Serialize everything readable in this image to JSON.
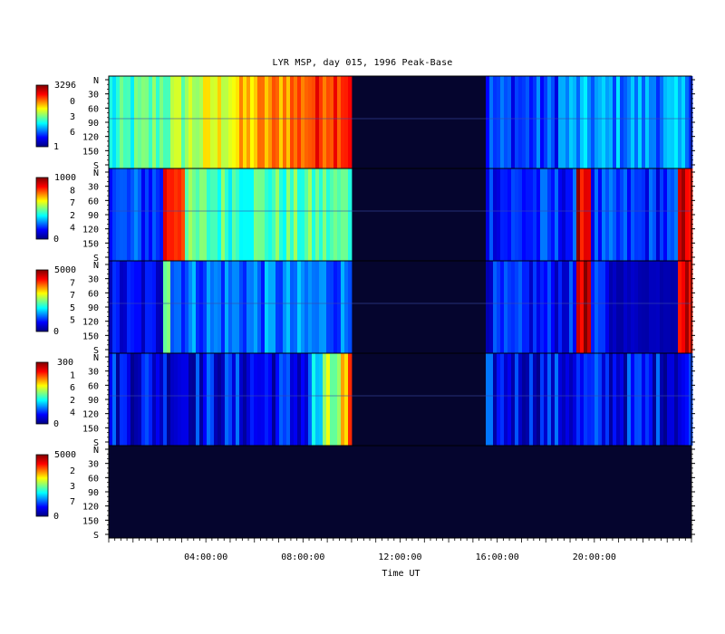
{
  "title": "LYR MSP, day 015, 1996 Peak-Base",
  "chart_data": {
    "type": "heatmap",
    "title": "LYR MSP, day 015, 1996 Peak-Base",
    "xlabel": "Time UT",
    "x_ticks": [
      "04:00:00",
      "08:00:00",
      "12:00:00",
      "16:00:00",
      "20:00:00"
    ],
    "x_tick_hours": [
      4,
      8,
      12,
      16,
      20
    ],
    "xlim_hours": [
      0,
      24
    ],
    "y_ticks": [
      "N",
      "30",
      "60",
      "90",
      "120",
      "150",
      "S"
    ],
    "ylim_deg": [
      0,
      180
    ],
    "data_gaps_hours": [
      [
        9.9,
        15.5
      ]
    ],
    "panels": [
      {
        "colorbar_max": "3296",
        "colorbar_labels": [
          "0",
          "3",
          "6"
        ],
        "colorbar_min": "1"
      },
      {
        "colorbar_max": "1000",
        "colorbar_labels": [
          "8",
          "7",
          "2",
          "4"
        ],
        "colorbar_min": "0"
      },
      {
        "colorbar_max": "5000",
        "colorbar_labels": [
          "7",
          "7",
          "5",
          "5"
        ],
        "colorbar_min": "0"
      },
      {
        "colorbar_max": "300",
        "colorbar_labels": [
          "1",
          "6",
          "2",
          "4"
        ],
        "colorbar_min": "0"
      },
      {
        "colorbar_max": "5000",
        "colorbar_labels": [
          "2",
          "3",
          "7"
        ],
        "colorbar_min": "0"
      }
    ],
    "colormap": [
      "#000080",
      "#0000ff",
      "#00ffff",
      "#ffff00",
      "#ff0000",
      "#800000"
    ],
    "grid": false
  }
}
